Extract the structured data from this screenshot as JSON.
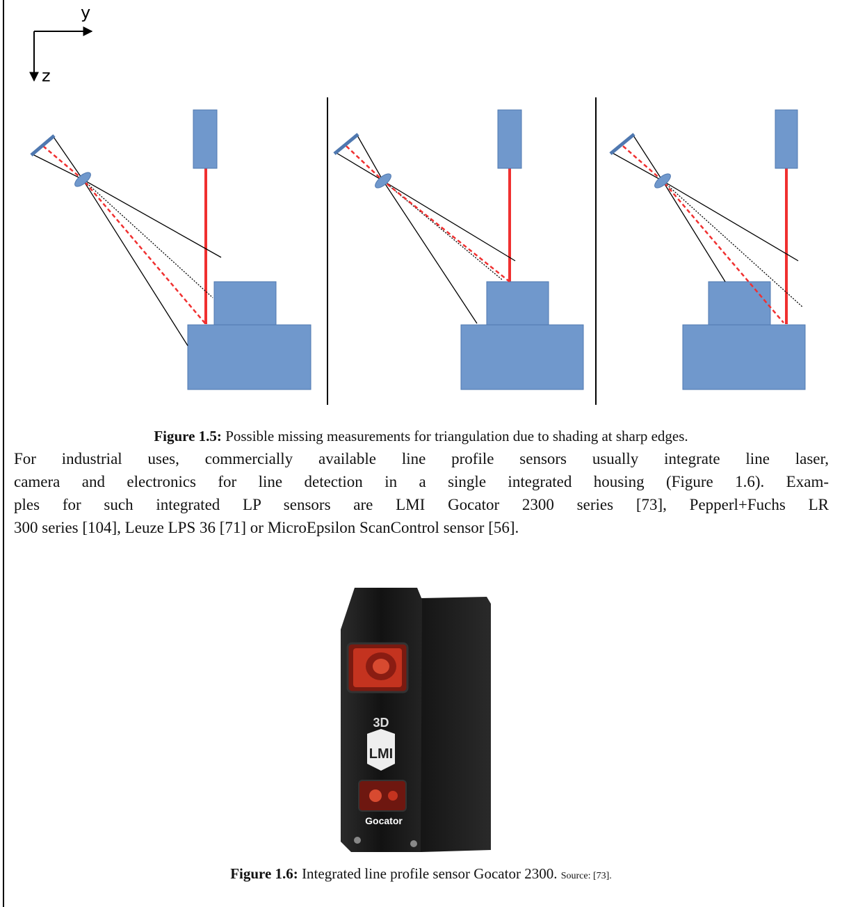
{
  "figure_1_5": {
    "axis_y": "y",
    "axis_z": "z",
    "label": "Figure 1.5:",
    "caption": "Possible missing measurements for triangulation due to shading at sharp edges."
  },
  "paragraph": {
    "lines": [
      "For industrial uses, commercially available line profile sensors usually integrate line laser,",
      "camera and electronics for line detection in a single integrated housing (Figure 1.6). Exam-",
      "ples for such integrated LP sensors are LMI Gocator 2300 series [73], Pepperl+Fuchs LR",
      "300 series [104], Leuze LPS 36 [71] or MicroEpsilon ScanControl sensor [56]."
    ]
  },
  "figure_1_6": {
    "logo_top": "3D",
    "logo_main": "LMI",
    "brand": "Gocator",
    "label": "Figure 1.6:",
    "caption": "Integrated line profile sensor Gocator 2300.",
    "source": "Source: [73]."
  }
}
